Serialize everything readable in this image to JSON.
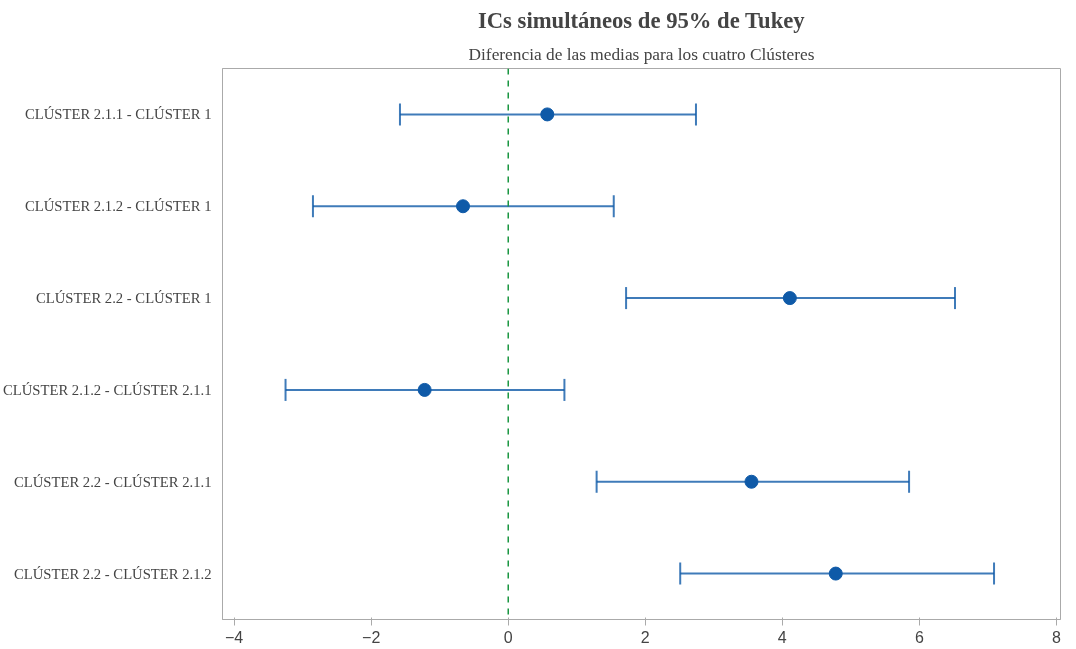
{
  "chart_data": {
    "type": "scatter",
    "orientation": "horizontal",
    "title": "ICs simultáneos de 95% de Tukey",
    "subtitle": "Diferencia de las medias para los cuatro Clústeres",
    "categories": [
      "CLÚSTER 2.1.1 - CLÚSTER 1",
      "CLÚSTER 2.1.2 - CLÚSTER 1",
      "CLÚSTER 2.2 - CLÚSTER 1",
      "CLÚSTER 2.1.2 - CLÚSTER 2.1.1",
      "CLÚSTER 2.2 - CLÚSTER 2.1.1",
      "CLÚSTER 2.2 - CLÚSTER 2.1.2"
    ],
    "values": [
      0.57,
      -0.66,
      4.11,
      -1.22,
      3.55,
      4.78
    ],
    "errors": [
      [
        -1.58,
        2.74
      ],
      [
        -2.85,
        1.54
      ],
      [
        1.72,
        6.52
      ],
      [
        -3.25,
        0.82
      ],
      [
        1.29,
        5.85
      ],
      [
        2.51,
        7.09
      ]
    ],
    "color": "#0f5aa8",
    "xlim": [
      -4.17,
      8.06
    ],
    "xticks": [
      -4,
      -2,
      0,
      2,
      4,
      6,
      8
    ],
    "ref_lines": [
      {
        "axis": "x",
        "value": 0,
        "color": "#1a9641",
        "line_style": "dashed"
      }
    ],
    "marker": "circle",
    "grid": false
  }
}
